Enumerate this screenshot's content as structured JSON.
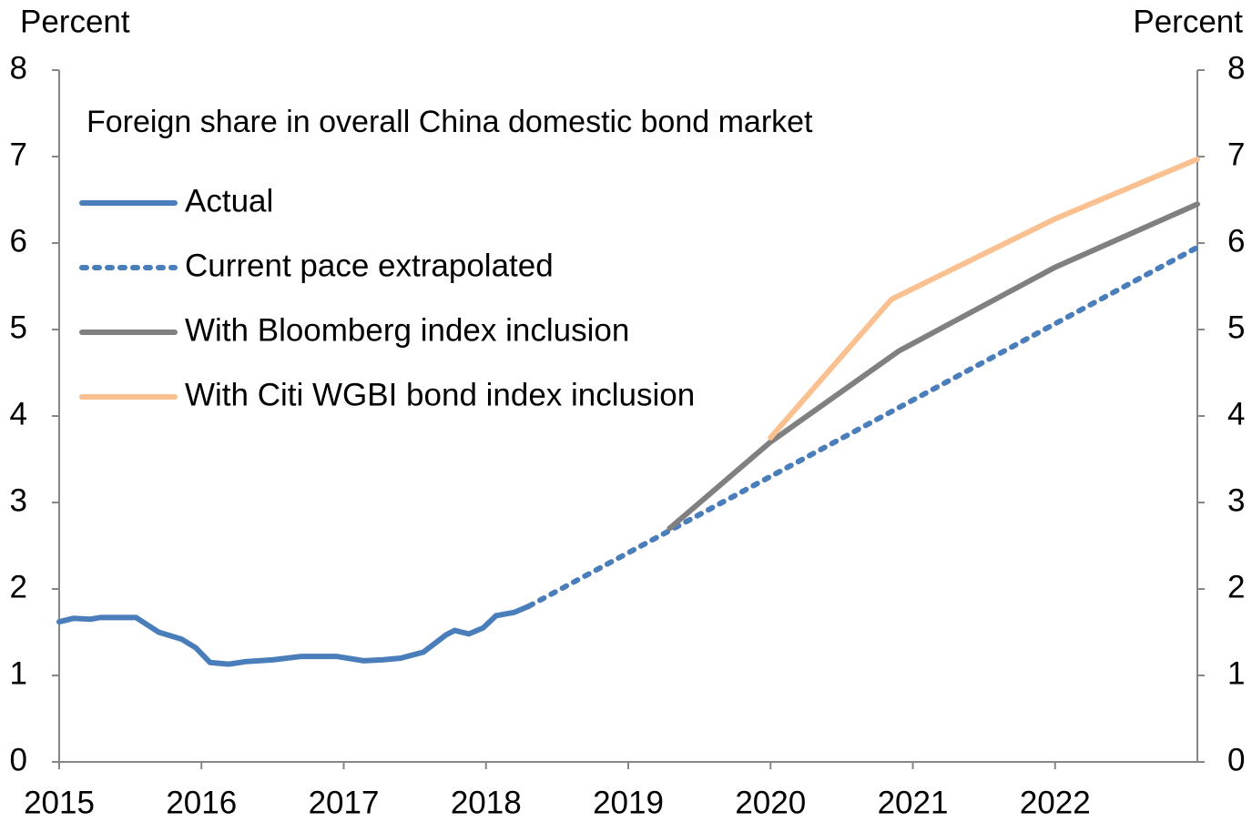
{
  "chart_data": {
    "type": "line",
    "title": "Foreign share in overall China domestic bond market",
    "y_label": "Percent",
    "y2_label": "Percent",
    "xlim": [
      2015,
      2023
    ],
    "xticks": [
      2015,
      2016,
      2017,
      2018,
      2019,
      2020,
      2021,
      2022
    ],
    "ylim": [
      0,
      8
    ],
    "yticks": [
      0,
      1,
      2,
      3,
      4,
      5,
      6,
      7,
      8
    ],
    "y2lim": [
      0,
      8
    ],
    "y2ticks": [
      0,
      1,
      2,
      3,
      4,
      5,
      6,
      7,
      8
    ],
    "series": [
      {
        "name": "Actual",
        "color": "#4a7ebb",
        "style": "solid",
        "x": [
          2015.0,
          2015.1,
          2015.22,
          2015.29,
          2015.54,
          2015.7,
          2015.86,
          2015.96,
          2016.06,
          2016.19,
          2016.31,
          2016.5,
          2016.7,
          2016.95,
          2017.14,
          2017.27,
          2017.4,
          2017.56,
          2017.72,
          2017.78,
          2017.88,
          2017.98,
          2018.07,
          2018.2,
          2018.3
        ],
        "values": [
          1.62,
          1.66,
          1.65,
          1.67,
          1.67,
          1.5,
          1.42,
          1.32,
          1.15,
          1.13,
          1.16,
          1.18,
          1.22,
          1.22,
          1.17,
          1.18,
          1.2,
          1.27,
          1.47,
          1.52,
          1.48,
          1.55,
          1.69,
          1.73,
          1.8
        ]
      },
      {
        "name": "Current pace extrapolated",
        "color": "#4a7ebb",
        "style": "dotted",
        "x": [
          2018.3,
          2023.0
        ],
        "values": [
          1.8,
          5.95
        ]
      },
      {
        "name": "With Bloomberg index inclusion",
        "color": "#808080",
        "style": "solid",
        "x": [
          2019.29,
          2020.0,
          2020.9,
          2022.0,
          2023.0
        ],
        "values": [
          2.7,
          3.7,
          4.75,
          5.72,
          6.45
        ]
      },
      {
        "name": "With Citi WGBI bond index inclusion",
        "color": "#fac090",
        "style": "solid",
        "x": [
          2020.0,
          2020.85,
          2022.0,
          2023.0
        ],
        "values": [
          3.75,
          5.35,
          6.28,
          6.97
        ]
      }
    ]
  }
}
